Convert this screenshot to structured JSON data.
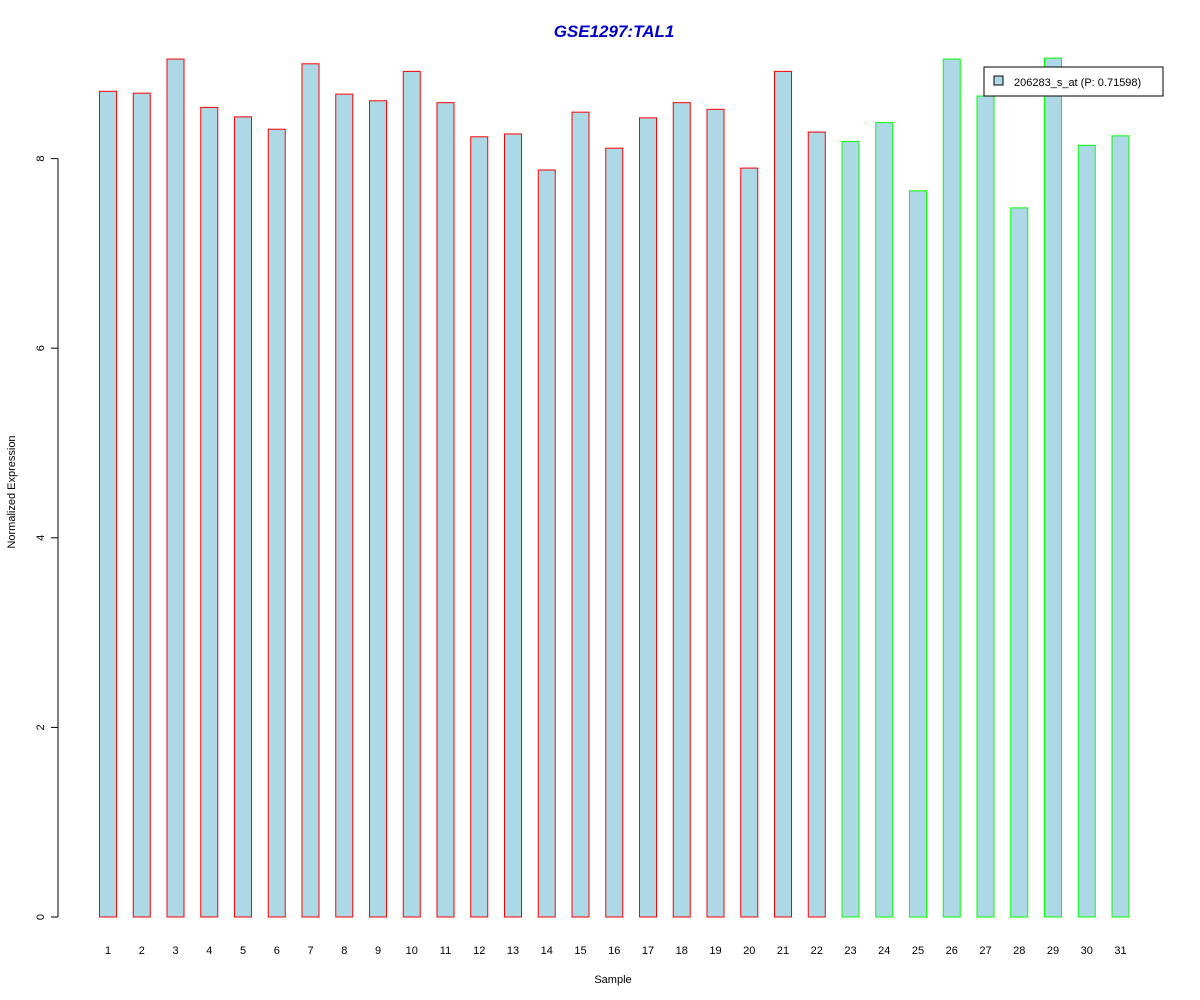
{
  "chart_data": {
    "type": "bar",
    "title": "GSE1297:TAL1",
    "xlabel": "Sample",
    "ylabel": "Normalized Expression",
    "categories": [
      "1",
      "2",
      "3",
      "4",
      "5",
      "6",
      "7",
      "8",
      "9",
      "10",
      "11",
      "12",
      "13",
      "14",
      "15",
      "16",
      "17",
      "18",
      "19",
      "20",
      "21",
      "22",
      "23",
      "24",
      "25",
      "26",
      "27",
      "28",
      "29",
      "30",
      "31"
    ],
    "series": [
      {
        "name": "206283_s_at (P: 0.71598)",
        "values": [
          8.71,
          8.69,
          9.05,
          8.54,
          8.44,
          8.31,
          9.0,
          8.68,
          8.61,
          8.92,
          8.59,
          8.23,
          8.26,
          7.88,
          8.49,
          8.11,
          8.43,
          8.59,
          8.52,
          7.9,
          8.92,
          8.28,
          8.18,
          8.38,
          7.66,
          9.05,
          8.66,
          7.48,
          9.06,
          8.14,
          8.24
        ]
      }
    ],
    "group_outline": [
      "red",
      "red",
      "red",
      "red",
      "red",
      "red",
      "red",
      "red",
      "red",
      "red",
      "red",
      "red",
      "red",
      "red",
      "red",
      "red",
      "red",
      "red",
      "red",
      "red",
      "red",
      "red",
      "green",
      "green",
      "green",
      "green",
      "green",
      "green",
      "green",
      "green",
      "green"
    ],
    "ylim": [
      0,
      9.06
    ],
    "yticks": [
      0,
      2,
      4,
      6,
      8
    ],
    "grid": false,
    "legend_position": "top-right",
    "colors": {
      "title": "#0000CC",
      "bar_fill": "#ADD8E6",
      "outline_red": "#FF0000",
      "outline_green": "#00FF00",
      "axis": "#000000"
    }
  }
}
